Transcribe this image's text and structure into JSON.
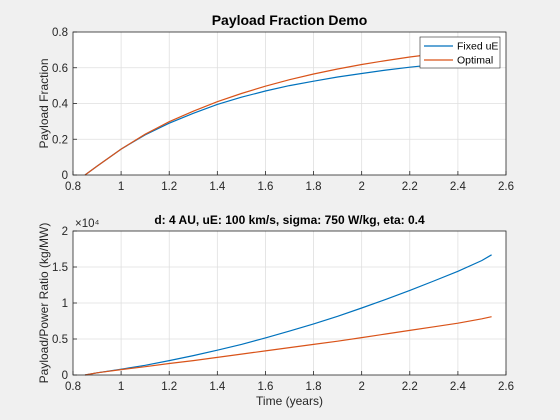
{
  "chart_data": [
    {
      "type": "line",
      "title": "Payload Fraction Demo",
      "xlabel": "",
      "ylabel": "Payload Fraction",
      "xlim": [
        0.8,
        2.6
      ],
      "ylim": [
        0,
        0.8
      ],
      "xticks": [
        "0.8",
        "1",
        "1.2",
        "1.4",
        "1.6",
        "1.8",
        "2",
        "2.2",
        "2.4",
        "2.6"
      ],
      "yticks": [
        "0",
        "0.2",
        "0.4",
        "0.6",
        "0.8"
      ],
      "grid": "on",
      "legend": "top-right",
      "x": [
        0.85,
        0.9,
        1.0,
        1.1,
        1.2,
        1.3,
        1.4,
        1.5,
        1.6,
        1.7,
        1.8,
        1.9,
        2.0,
        2.1,
        2.2,
        2.3,
        2.4,
        2.5,
        2.54
      ],
      "series": [
        {
          "name": "Fixed uE",
          "color": "#0072bd",
          "values": [
            0.0,
            0.05,
            0.145,
            0.225,
            0.29,
            0.345,
            0.395,
            0.435,
            0.47,
            0.5,
            0.525,
            0.548,
            0.568,
            0.587,
            0.603,
            0.617,
            0.63,
            0.642,
            0.645
          ]
        },
        {
          "name": "Optimal",
          "color": "#d95319",
          "values": [
            0.0,
            0.05,
            0.145,
            0.228,
            0.298,
            0.357,
            0.41,
            0.456,
            0.497,
            0.533,
            0.565,
            0.593,
            0.618,
            0.64,
            0.66,
            0.677,
            0.692,
            0.705,
            0.71
          ]
        }
      ]
    },
    {
      "type": "line",
      "title": "d: 4 AU, uE: 100 km/s, sigma: 750 W/kg, eta: 0.4",
      "xlabel": "Time (years)",
      "ylabel": "Payload/Power Ratio (kg/MW)",
      "multiplier": "×10⁴",
      "xlim": [
        0.8,
        2.6
      ],
      "ylim": [
        0,
        20000
      ],
      "xticks": [
        "0.8",
        "1",
        "1.2",
        "1.4",
        "1.6",
        "1.8",
        "2",
        "2.2",
        "2.4",
        "2.6"
      ],
      "yticks": [
        "0",
        "0.5",
        "1",
        "1.5",
        "2"
      ],
      "grid": "on",
      "x": [
        0.85,
        0.9,
        1.0,
        1.1,
        1.2,
        1.3,
        1.4,
        1.5,
        1.6,
        1.7,
        1.8,
        1.9,
        2.0,
        2.1,
        2.2,
        2.3,
        2.4,
        2.5,
        2.54
      ],
      "series": [
        {
          "color": "#0072bd",
          "values": [
            0,
            300,
            800,
            1350,
            2000,
            2700,
            3450,
            4250,
            5150,
            6100,
            7100,
            8150,
            9300,
            10500,
            11750,
            13050,
            14400,
            15900,
            16700
          ]
        },
        {
          "color": "#d95319",
          "values": [
            0,
            300,
            750,
            1150,
            1600,
            2000,
            2450,
            2900,
            3350,
            3800,
            4250,
            4700,
            5200,
            5700,
            6200,
            6700,
            7200,
            7800,
            8100
          ]
        }
      ]
    }
  ]
}
